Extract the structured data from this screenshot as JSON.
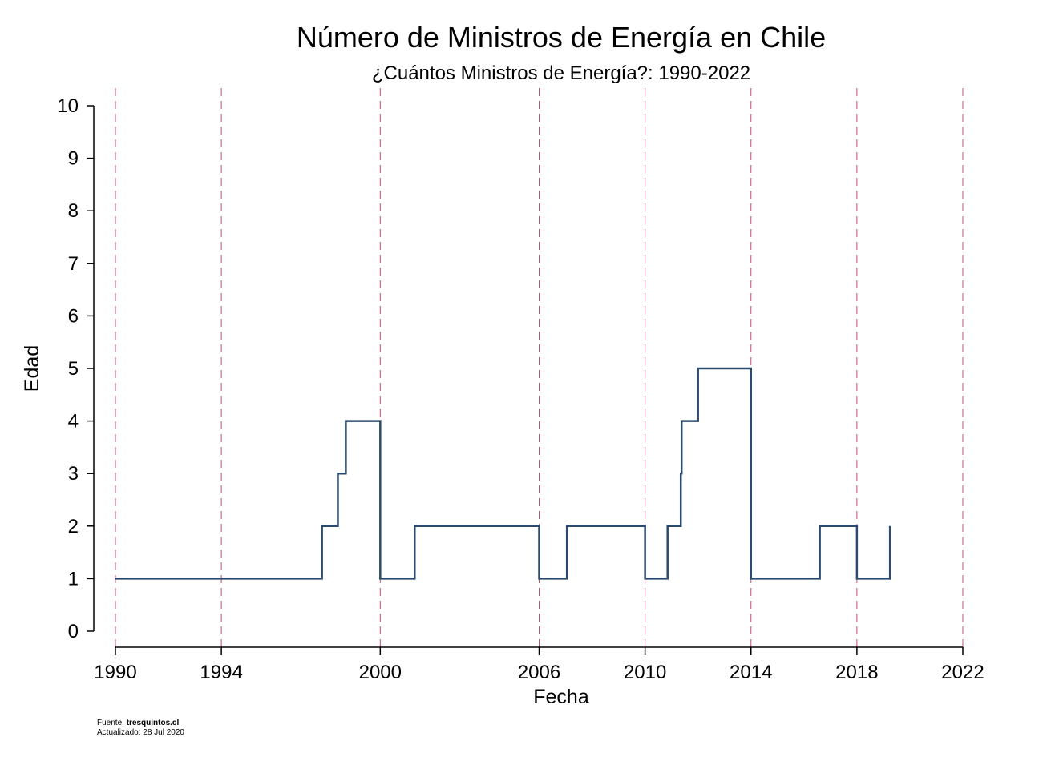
{
  "chart_data": {
    "type": "line",
    "step": true,
    "title": "Número de Ministros de Energía en Chile",
    "subtitle": "¿Cuántos Ministros de Energía?: 1990-2022",
    "xlabel": "Fecha",
    "ylabel": "Edad",
    "xlim": [
      1990,
      2022
    ],
    "ylim": [
      0,
      10
    ],
    "x_ticks": [
      "1990",
      "1994",
      "2000",
      "2006",
      "2010",
      "2014",
      "2018",
      "2022"
    ],
    "y_ticks": [
      "0",
      "1",
      "2",
      "3",
      "4",
      "5",
      "6",
      "7",
      "8",
      "9",
      "10"
    ],
    "reference_lines": [
      1990,
      1994,
      2000,
      2006,
      2010,
      2014,
      2018,
      2022
    ],
    "grid": false,
    "legend": "none",
    "series": [
      {
        "color": "#2c4a6e",
        "points": [
          {
            "x": 1990.0,
            "y": 1
          },
          {
            "x": 1997.8,
            "y": 2
          },
          {
            "x": 1998.4,
            "y": 3
          },
          {
            "x": 1998.7,
            "y": 4
          },
          {
            "x": 2000.0,
            "y": 1
          },
          {
            "x": 2001.3,
            "y": 2
          },
          {
            "x": 2006.0,
            "y": 1
          },
          {
            "x": 2007.05,
            "y": 2
          },
          {
            "x": 2010.0,
            "y": 1
          },
          {
            "x": 2010.85,
            "y": 2
          },
          {
            "x": 2011.35,
            "y": 3
          },
          {
            "x": 2011.38,
            "y": 4
          },
          {
            "x": 2012.0,
            "y": 5
          },
          {
            "x": 2014.0,
            "y": 1
          },
          {
            "x": 2016.6,
            "y": 2
          },
          {
            "x": 2018.0,
            "y": 1
          },
          {
            "x": 2019.25,
            "y": 2
          }
        ]
      }
    ],
    "reference_line_color": "#c0506e",
    "axis_color": "#000000"
  },
  "footer": {
    "source_label": "Fuente: ",
    "source_value": "tresquintos.cl",
    "updated": "Actualizado: 28 Jul 2020"
  }
}
